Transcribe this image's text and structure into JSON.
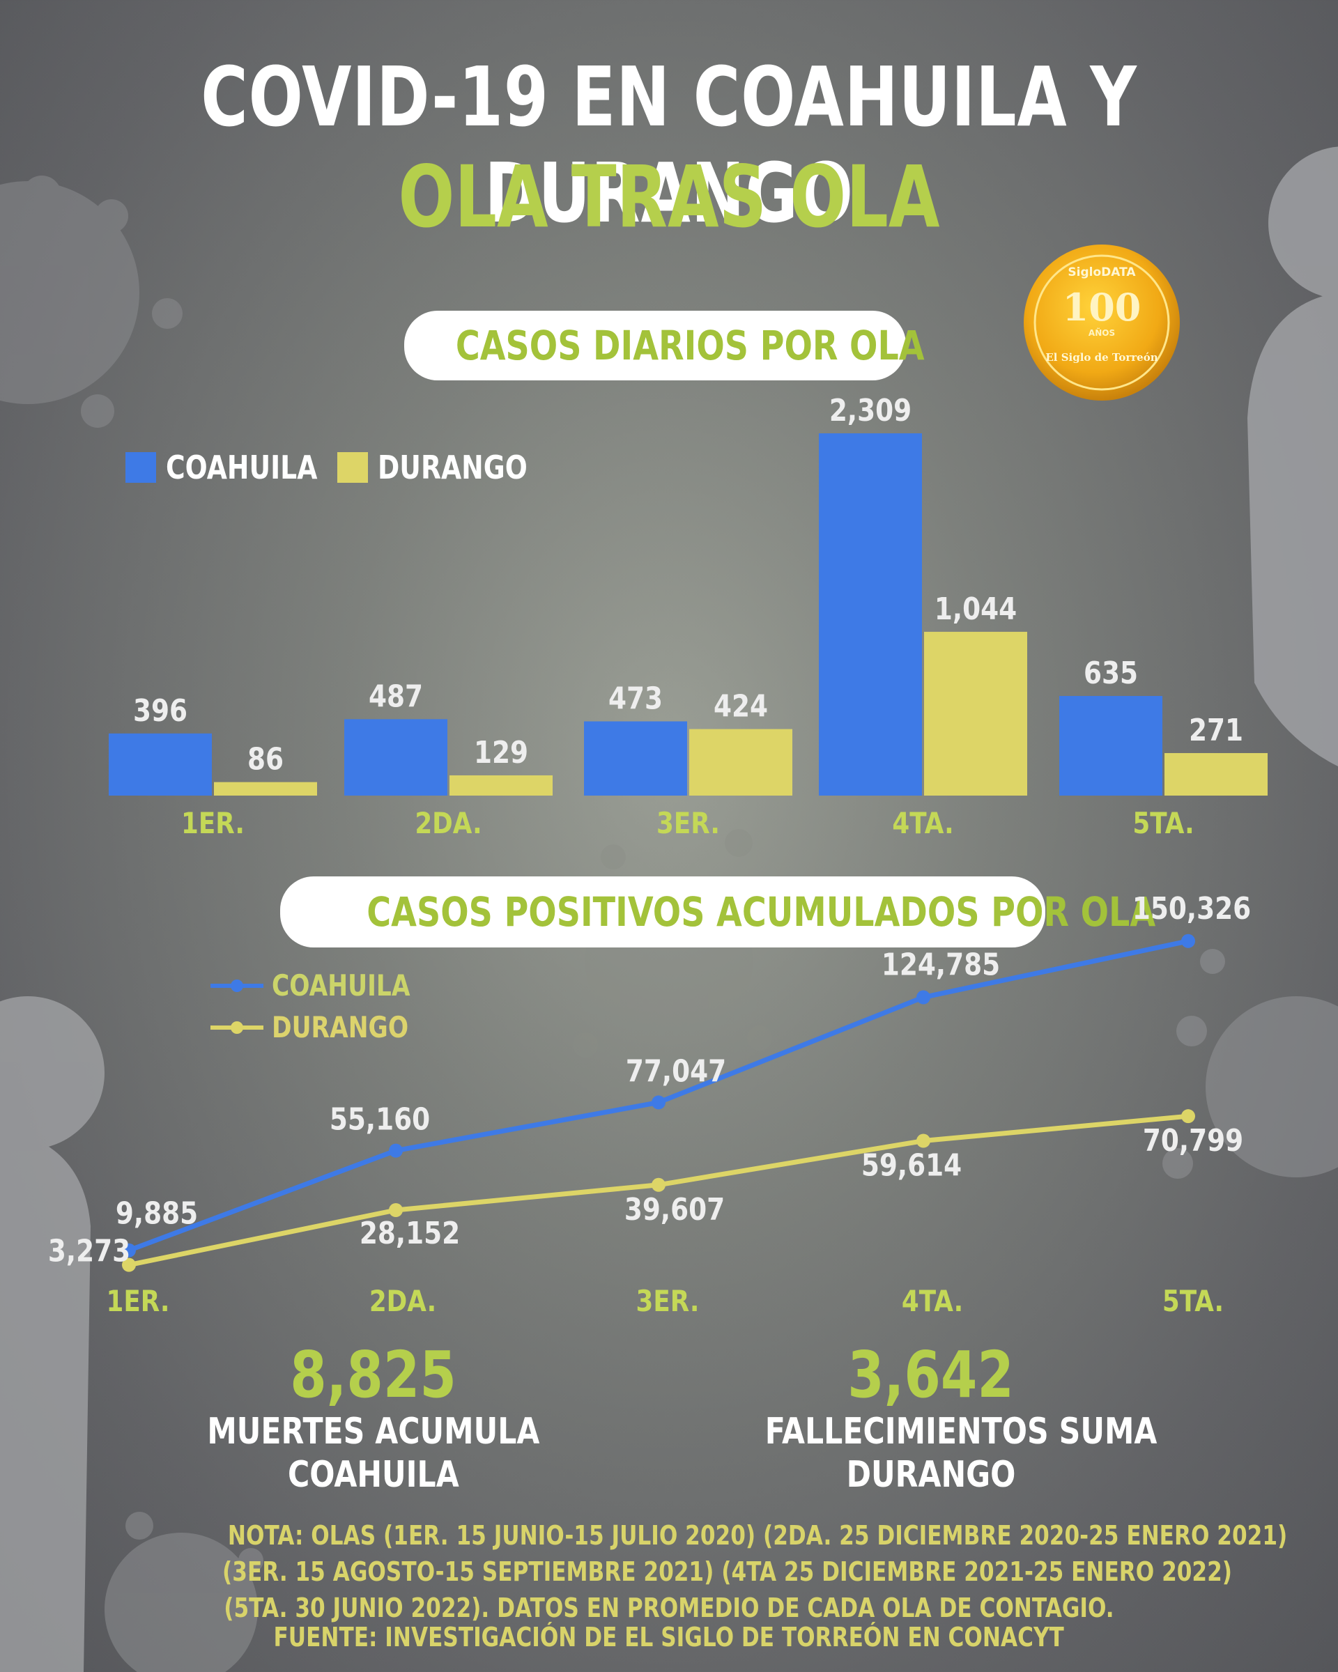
{
  "header": {
    "title": "COVID-19 EN COAHUILA Y DURANGO",
    "subtitle": "OLA TRAS OLA"
  },
  "badge": {
    "top_text": "SigloDATA",
    "number": "100",
    "sub": "AÑOS",
    "bottom_text": "El Siglo de Torreón"
  },
  "colors": {
    "coahuila": "#3e7ae6",
    "durango": "#ddd567",
    "accent_green": "#b5cf4c"
  },
  "chart_data": [
    {
      "type": "bar",
      "title": "CASOS DIARIOS POR OLA",
      "categories": [
        "1ER.",
        "2DA.",
        "3ER.",
        "4TA.",
        "5TA."
      ],
      "series": [
        {
          "name": "COAHUILA",
          "values": [
            396,
            487,
            473,
            2309,
            635
          ],
          "labels": [
            "396",
            "487",
            "473",
            "2,309",
            "635"
          ]
        },
        {
          "name": "DURANGO",
          "values": [
            86,
            129,
            424,
            1044,
            271
          ],
          "labels": [
            "86",
            "129",
            "424",
            "1,044",
            "271"
          ]
        }
      ],
      "ylim": [
        0,
        2309
      ],
      "legend_position": "top-left"
    },
    {
      "type": "line",
      "title": "CASOS POSITIVOS ACUMULADOS POR OLA",
      "categories": [
        "1ER.",
        "2DA.",
        "3ER.",
        "4TA.",
        "5TA."
      ],
      "series": [
        {
          "name": "COAHUILA",
          "values": [
            9885,
            55160,
            77047,
            124785,
            150326
          ],
          "labels": [
            "9,885",
            "55,160",
            "77,047",
            "124,785",
            "150,326"
          ]
        },
        {
          "name": "DURANGO",
          "values": [
            3273,
            28152,
            39607,
            59614,
            70799
          ],
          "labels": [
            "3,273",
            "28,152",
            "39,607",
            "59,614",
            "70,799"
          ]
        }
      ],
      "ylim": [
        0,
        155000
      ],
      "legend_position": "top-left"
    }
  ],
  "stats": [
    {
      "value": "8,825",
      "label_line1": "MUERTES ACUMULA",
      "label_line2": "COAHUILA"
    },
    {
      "value": "3,642",
      "label_line1": "FALLECIMIENTOS SUMA",
      "label_line2": "DURANGO"
    }
  ],
  "note": {
    "line1": "NOTA: OLAS (1ER. 15 JUNIO-15 JULIO 2020) (2DA. 25 DICIEMBRE 2020-25 ENERO 2021)",
    "line2": "(3ER. 15 AGOSTO-15 SEPTIEMBRE 2021) (4TA 25 DICIEMBRE 2021-25 ENERO 2022)",
    "line3": "(5TA. 30 JUNIO 2022). DATOS EN PROMEDIO DE CADA OLA DE CONTAGIO."
  },
  "source": "FUENTE: INVESTIGACIÓN DE EL SIGLO DE TORREÓN EN CONACYT"
}
